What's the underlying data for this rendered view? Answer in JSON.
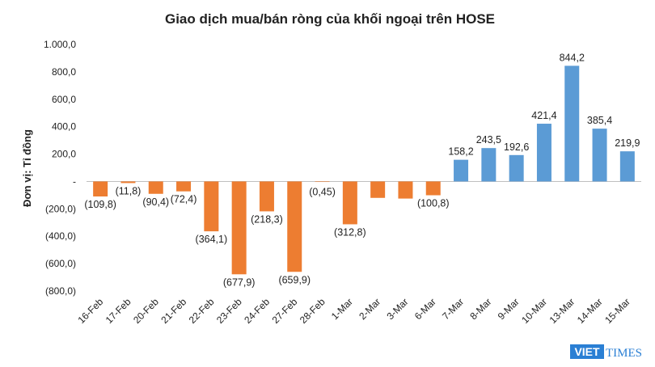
{
  "colors": {
    "negative": "#ED7D31",
    "positive": "#5B9BD5",
    "logo_blue": "#2a7fd4"
  },
  "logo": {
    "viet": "VIET",
    "times": "TIMES"
  },
  "chart_data": {
    "type": "bar",
    "title": "Giao dịch mua/bán ròng của khối ngoại trên HOSE",
    "ylabel": "Đơn vị: Tỉ đồng",
    "xlabel": "",
    "ylim": [
      -800,
      1000
    ],
    "yticks": [
      1000,
      800,
      600,
      400,
      200,
      0,
      -200,
      -400,
      -600,
      -800
    ],
    "ytick_labels": [
      "1.000,0",
      "800,0",
      "600,0",
      "400,0",
      "200,0",
      "-",
      "(200,0)",
      "(400,0)",
      "(600,0)",
      "(800,0)"
    ],
    "categories": [
      "16-Feb",
      "17-Feb",
      "20-Feb",
      "21-Feb",
      "22-Feb",
      "23-Feb",
      "24-Feb",
      "27-Feb",
      "28-Feb",
      "1-Mar",
      "2-Mar",
      "3-Mar",
      "6-Mar",
      "7-Mar",
      "8-Mar",
      "9-Mar",
      "10-Mar",
      "13-Mar",
      "14-Mar",
      "15-Mar"
    ],
    "values": [
      -109.8,
      -11.8,
      -90.4,
      -72.4,
      -364.1,
      -677.9,
      -218.3,
      -659.9,
      -0.45,
      -312.8,
      -120,
      -125,
      -100.8,
      158.2,
      243.5,
      192.6,
      421.4,
      844.2,
      385.4,
      219.9
    ],
    "data_labels": [
      "(109,8)",
      "(11,8)",
      "(90,4)",
      "(72,4)",
      "(364,1)",
      "(677,9)",
      "(218,3)",
      "(659,9)",
      "(0,45)",
      "(312,8)",
      "",
      "",
      "(100,8)",
      "158,2",
      "243,5",
      "192,6",
      "421,4",
      "844,2",
      "385,4",
      "219,9"
    ],
    "legend": "none",
    "grid": false
  }
}
